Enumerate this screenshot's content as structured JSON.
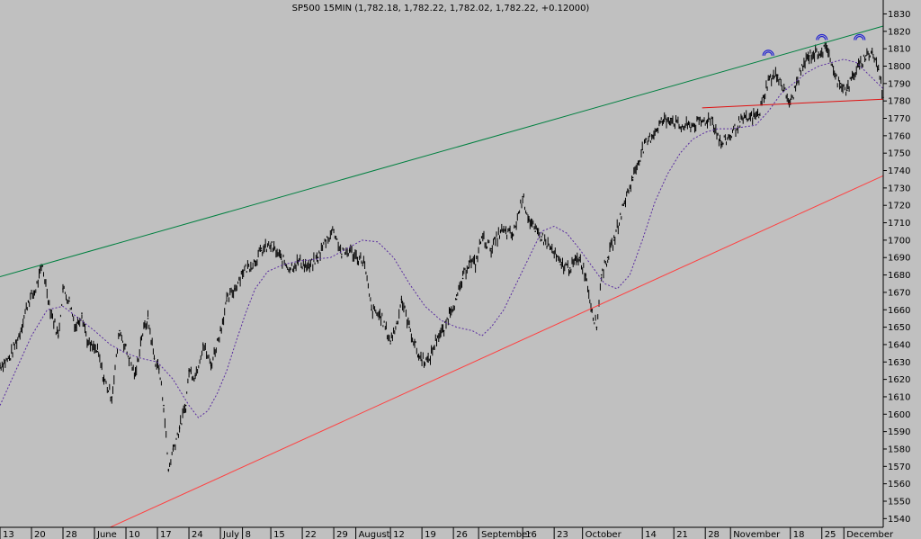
{
  "chart_data": {
    "type": "line",
    "title": "SP500 15MIN (1,782.18, 1,782.22, 1,782.02, 1,782.22, +0.12000)",
    "xlabel": "",
    "ylabel": "",
    "ylim": [
      1535,
      1838
    ],
    "grid": false,
    "y_ticks": [
      1540,
      1550,
      1560,
      1570,
      1580,
      1590,
      1600,
      1610,
      1620,
      1630,
      1640,
      1650,
      1660,
      1670,
      1680,
      1690,
      1700,
      1710,
      1720,
      1730,
      1740,
      1750,
      1760,
      1770,
      1780,
      1790,
      1800,
      1810,
      1820,
      1830
    ],
    "x_ticks": [
      {
        "label": "13",
        "x": 0.0
      },
      {
        "label": "20",
        "x": 1.0
      },
      {
        "label": "28",
        "x": 2.0
      },
      {
        "label": "June",
        "x": 3.0
      },
      {
        "label": "10",
        "x": 4.0
      },
      {
        "label": "17",
        "x": 5.0
      },
      {
        "label": "24",
        "x": 6.0
      },
      {
        "label": "July",
        "x": 7.0
      },
      {
        "label": "8",
        "x": 7.7
      },
      {
        "label": "15",
        "x": 8.6
      },
      {
        "label": "22",
        "x": 9.6
      },
      {
        "label": "29",
        "x": 10.6
      },
      {
        "label": "August",
        "x": 11.3
      },
      {
        "label": "12",
        "x": 12.4
      },
      {
        "label": "19",
        "x": 13.4
      },
      {
        "label": "26",
        "x": 14.4
      },
      {
        "label": "September",
        "x": 15.2
      },
      {
        "label": "16",
        "x": 16.6
      },
      {
        "label": "23",
        "x": 17.6
      },
      {
        "label": "October",
        "x": 18.5
      },
      {
        "label": "14",
        "x": 20.4
      },
      {
        "label": "21",
        "x": 21.4
      },
      {
        "label": "28",
        "x": 22.4
      },
      {
        "label": "November",
        "x": 23.2
      },
      {
        "label": "18",
        "x": 25.1
      },
      {
        "label": "25",
        "x": 26.1
      },
      {
        "label": "December",
        "x": 26.8
      }
    ],
    "series": [
      {
        "name": "",
        "style": "black-bars",
        "color": "#000000",
        "x": [
          0.0,
          0.3,
          0.6,
          0.9,
          1.1,
          1.35,
          1.6,
          1.85,
          2.0,
          2.2,
          2.4,
          2.6,
          2.8,
          3.1,
          3.3,
          3.55,
          3.8,
          4.1,
          4.3,
          4.5,
          4.7,
          4.9,
          5.05,
          5.2,
          5.35,
          5.5,
          5.7,
          5.9,
          6.0,
          6.2,
          6.45,
          6.7,
          7.0,
          7.2,
          7.45,
          7.7,
          7.9,
          8.1,
          8.3,
          8.6,
          8.9,
          9.2,
          9.5,
          9.8,
          10.1,
          10.35,
          10.6,
          10.85,
          11.1,
          11.35,
          11.55,
          11.8,
          12.1,
          12.4,
          12.6,
          12.75,
          13.0,
          13.3,
          13.6,
          13.9,
          14.1,
          14.3,
          14.5,
          14.7,
          14.9,
          15.1,
          15.3,
          15.6,
          15.9,
          16.3,
          16.6,
          16.8,
          17.0,
          17.2,
          17.5,
          17.8,
          18.1,
          18.4,
          18.6,
          18.8,
          18.95,
          19.1,
          19.3,
          19.5,
          19.8,
          20.1,
          20.4,
          20.7,
          21.0,
          21.3,
          21.6,
          22.0,
          22.3,
          22.6,
          22.9,
          23.2,
          23.5,
          23.8,
          24.1,
          24.4,
          24.7,
          24.9,
          25.1,
          25.3,
          25.5,
          25.7,
          26.0,
          26.3,
          26.5,
          26.7,
          26.9,
          27.1,
          27.3,
          27.5,
          27.7,
          27.9,
          28.05
        ],
        "values": [
          1628,
          1632,
          1645,
          1665,
          1670,
          1685,
          1660,
          1645,
          1672,
          1665,
          1650,
          1658,
          1640,
          1636,
          1620,
          1610,
          1648,
          1632,
          1622,
          1645,
          1655,
          1632,
          1626,
          1605,
          1568,
          1580,
          1592,
          1605,
          1625,
          1622,
          1640,
          1628,
          1648,
          1665,
          1672,
          1682,
          1685,
          1688,
          1694,
          1697,
          1690,
          1684,
          1688,
          1684,
          1690,
          1700,
          1706,
          1692,
          1694,
          1690,
          1688,
          1660,
          1656,
          1642,
          1652,
          1666,
          1650,
          1633,
          1630,
          1645,
          1648,
          1660,
          1666,
          1678,
          1688,
          1686,
          1702,
          1695,
          1705,
          1703,
          1725,
          1712,
          1705,
          1702,
          1695,
          1686,
          1684,
          1690,
          1680,
          1660,
          1650,
          1680,
          1690,
          1700,
          1720,
          1736,
          1752,
          1760,
          1768,
          1770,
          1765,
          1766,
          1768,
          1770,
          1755,
          1760,
          1768,
          1770,
          1772,
          1792,
          1795,
          1786,
          1778,
          1790,
          1800,
          1806,
          1808,
          1810,
          1794,
          1790,
          1786,
          1795,
          1800,
          1806,
          1808,
          1798,
          1782
        ]
      },
      {
        "name": "",
        "style": "dotted",
        "color": "#5a2da0",
        "x": [
          0.0,
          0.5,
          1.0,
          1.5,
          2.0,
          2.5,
          3.0,
          3.5,
          4.0,
          4.5,
          5.0,
          5.5,
          6.0,
          6.3,
          6.6,
          6.9,
          7.2,
          7.5,
          7.8,
          8.1,
          8.5,
          9.0,
          9.5,
          10.0,
          10.5,
          11.0,
          11.5,
          12.0,
          12.5,
          13.0,
          13.5,
          14.0,
          14.5,
          15.0,
          15.3,
          15.6,
          16.0,
          16.4,
          16.8,
          17.2,
          17.6,
          18.0,
          18.4,
          18.8,
          19.2,
          19.6,
          20.0,
          20.4,
          20.8,
          21.2,
          21.6,
          22.0,
          22.4,
          22.8,
          23.2,
          23.6,
          24.0,
          24.4,
          24.8,
          25.2,
          25.6,
          26.0,
          26.4,
          26.8,
          27.2,
          27.6,
          28.05
        ],
        "values": [
          1605,
          1625,
          1645,
          1660,
          1662,
          1655,
          1648,
          1640,
          1635,
          1632,
          1630,
          1620,
          1605,
          1598,
          1602,
          1612,
          1625,
          1642,
          1658,
          1672,
          1682,
          1686,
          1688,
          1689,
          1690,
          1695,
          1700,
          1699,
          1690,
          1675,
          1662,
          1654,
          1650,
          1648,
          1645,
          1650,
          1660,
          1675,
          1690,
          1705,
          1708,
          1704,
          1695,
          1685,
          1675,
          1672,
          1680,
          1700,
          1722,
          1738,
          1750,
          1758,
          1762,
          1764,
          1764,
          1765,
          1766,
          1774,
          1784,
          1790,
          1796,
          1800,
          1802,
          1804,
          1802,
          1795,
          1787
        ]
      },
      {
        "name": "",
        "style": "line",
        "color": "#008040",
        "x": [
          0.0,
          28.05
        ],
        "values": [
          1679,
          1823
        ]
      },
      {
        "name": "",
        "style": "line",
        "color": "#ff4040",
        "x": [
          3.5,
          28.05
        ],
        "values": [
          1535,
          1737
        ]
      },
      {
        "name": "",
        "style": "line",
        "color": "#e01010",
        "x": [
          22.3,
          28.05
        ],
        "values": [
          1776,
          1781
        ]
      }
    ],
    "annotations": [
      {
        "type": "arc-marker",
        "color": "#2020d0",
        "x": 24.4,
        "y": 1806
      },
      {
        "type": "arc-marker",
        "color": "#2020d0",
        "x": 26.1,
        "y": 1815
      },
      {
        "type": "arc-marker",
        "color": "#2020d0",
        "x": 27.3,
        "y": 1815
      }
    ]
  }
}
